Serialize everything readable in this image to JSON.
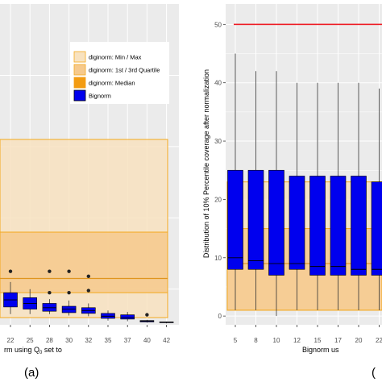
{
  "colors": {
    "panel_bg": "#ebebeb",
    "grid_major": "#ffffff",
    "band_minmax": "#f8e2bf",
    "band_quartile": "#f6c98c",
    "band_border": "#f4a91f",
    "median_line": "#e0941d",
    "bignorm_fill": "#0000ee",
    "bignorm_border": "#000000",
    "ref_line": "#ee1c25"
  },
  "chart_data": [
    {
      "panel": "(a)",
      "type": "boxplot",
      "xlabel_visible": "rm using Q",
      "xlabel_sub": "0",
      "xlabel_tail": " set to",
      "categories": [
        "22",
        "25",
        "28",
        "30",
        "32",
        "35",
        "37",
        "40",
        "42"
      ],
      "ylim": [
        0,
        45
      ],
      "legend": [
        {
          "key": "minmax",
          "label": "diginorm: Min / Max"
        },
        {
          "key": "quartile",
          "label": "diginorm: 1st / 3rd Quartile"
        },
        {
          "key": "median",
          "label": "diginorm: Median"
        },
        {
          "key": "bignorm",
          "label": "Bignorm"
        }
      ],
      "diginorm": {
        "min": 1,
        "q1": 4.5,
        "median": 6.5,
        "q3": 13,
        "max": 26
      },
      "bignorm_boxes": [
        {
          "cat": "22",
          "low": 1.5,
          "q1": 2.5,
          "median": 3.5,
          "q3": 4.5,
          "high": 6,
          "outliers": [
            7.5
          ]
        },
        {
          "cat": "25",
          "low": 1.5,
          "q1": 2.2,
          "median": 3.0,
          "q3": 3.8,
          "high": 5,
          "outliers": []
        },
        {
          "cat": "28",
          "low": 1.5,
          "q1": 1.9,
          "median": 2.4,
          "q3": 3.0,
          "high": 3.6,
          "outliers": [
            4.5,
            7.5
          ]
        },
        {
          "cat": "30",
          "low": 1.3,
          "q1": 1.7,
          "median": 2.2,
          "q3": 2.6,
          "high": 3.4,
          "outliers": [
            4.5,
            7.5
          ]
        },
        {
          "cat": "32",
          "low": 1.2,
          "q1": 1.6,
          "median": 2.0,
          "q3": 2.4,
          "high": 3.0,
          "outliers": [
            4.8,
            6.8
          ]
        },
        {
          "cat": "35",
          "low": 0.6,
          "q1": 0.9,
          "median": 1.2,
          "q3": 1.6,
          "high": 2.0,
          "outliers": []
        },
        {
          "cat": "37",
          "low": 0.5,
          "q1": 0.8,
          "median": 1.0,
          "q3": 1.4,
          "high": 1.8,
          "outliers": []
        },
        {
          "cat": "40",
          "low": 0.3,
          "q1": 0.4,
          "median": 0.5,
          "q3": 0.6,
          "high": 0.7,
          "outliers": [
            1.4
          ]
        },
        {
          "cat": "42",
          "low": 0.2,
          "q1": 0.3,
          "median": 0.35,
          "q3": 0.4,
          "high": 0.45,
          "outliers": []
        }
      ]
    },
    {
      "panel": "(",
      "type": "boxplot",
      "ylabel": "Distribution of 10% Percentile coverage after normalization",
      "xlabel": "Bignorm us",
      "categories": [
        "5",
        "8",
        "10",
        "12",
        "15",
        "17",
        "20",
        "22"
      ],
      "yticks": [
        0,
        10,
        20,
        30,
        40,
        50
      ],
      "ylim": [
        -1.5,
        53.5
      ],
      "reference_line": 50,
      "diginorm": {
        "min": 1,
        "q1": 1,
        "median": 9,
        "q3": 15,
        "max": 23
      },
      "bignorm_boxes": [
        {
          "cat": "5",
          "low": 1,
          "q1": 8,
          "median": 10,
          "q3": 25,
          "high": 45
        },
        {
          "cat": "8",
          "low": 1,
          "q1": 8,
          "median": 9.5,
          "q3": 25,
          "high": 42
        },
        {
          "cat": "10",
          "low": 0,
          "q1": 7,
          "median": 9,
          "q3": 25,
          "high": 42
        },
        {
          "cat": "12",
          "low": 1,
          "q1": 8,
          "median": 9,
          "q3": 24,
          "high": 40
        },
        {
          "cat": "15",
          "low": 1,
          "q1": 7,
          "median": 8.5,
          "q3": 24,
          "high": 40
        },
        {
          "cat": "17",
          "low": 1,
          "q1": 7,
          "median": 8.5,
          "q3": 24,
          "high": 40
        },
        {
          "cat": "20",
          "low": 1,
          "q1": 7,
          "median": 8,
          "q3": 24,
          "high": 40
        },
        {
          "cat": "22",
          "low": 1,
          "q1": 7,
          "median": 8,
          "q3": 23,
          "high": 39
        }
      ]
    }
  ]
}
